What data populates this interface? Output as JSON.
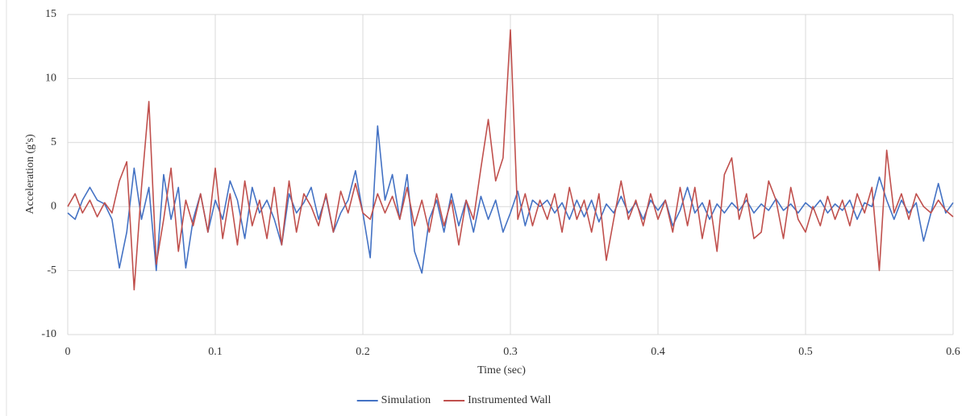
{
  "chart_data": {
    "type": "line",
    "x_label": "Time (sec)",
    "y_label": "Acceleration (g's)",
    "x": [
      0,
      0.005,
      0.01,
      0.015,
      0.02,
      0.025,
      0.03,
      0.035,
      0.04,
      0.045,
      0.05,
      0.055,
      0.06,
      0.065,
      0.07,
      0.075,
      0.08,
      0.085,
      0.09,
      0.095,
      0.1,
      0.105,
      0.11,
      0.115,
      0.12,
      0.125,
      0.13,
      0.135,
      0.14,
      0.145,
      0.15,
      0.155,
      0.16,
      0.165,
      0.17,
      0.175,
      0.18,
      0.185,
      0.19,
      0.195,
      0.2,
      0.205,
      0.21,
      0.215,
      0.22,
      0.225,
      0.23,
      0.235,
      0.24,
      0.245,
      0.25,
      0.255,
      0.26,
      0.265,
      0.27,
      0.275,
      0.28,
      0.285,
      0.29,
      0.295,
      0.3,
      0.305,
      0.31,
      0.315,
      0.32,
      0.325,
      0.33,
      0.335,
      0.34,
      0.345,
      0.35,
      0.355,
      0.36,
      0.365,
      0.37,
      0.375,
      0.38,
      0.385,
      0.39,
      0.395,
      0.4,
      0.405,
      0.41,
      0.415,
      0.42,
      0.425,
      0.43,
      0.435,
      0.44,
      0.445,
      0.45,
      0.455,
      0.46,
      0.465,
      0.47,
      0.475,
      0.48,
      0.485,
      0.49,
      0.495,
      0.5,
      0.505,
      0.51,
      0.515,
      0.52,
      0.525,
      0.53,
      0.535,
      0.54,
      0.545,
      0.55,
      0.555,
      0.56,
      0.565,
      0.57,
      0.575,
      0.58,
      0.585,
      0.59,
      0.595,
      0.6
    ],
    "series": [
      {
        "name": "Simulation",
        "color": "#4472c4",
        "values": [
          -0.5,
          -1,
          0.5,
          1.5,
          0.5,
          0.2,
          -1,
          -4.8,
          -2,
          3,
          -1,
          1.5,
          -5,
          2.5,
          -1,
          1.5,
          -4.8,
          -1,
          1,
          -2,
          0.5,
          -1,
          2,
          0.5,
          -2.5,
          1.5,
          -0.5,
          0.5,
          -1,
          -3,
          1,
          -0.5,
          0.3,
          1.5,
          -1,
          0.8,
          -2,
          -0.5,
          0.5,
          2.8,
          -0.5,
          -4,
          6.3,
          0.5,
          2.5,
          -1,
          2.5,
          -3.5,
          -5.2,
          -1,
          0.5,
          -2,
          1,
          -1.5,
          0.5,
          -2,
          0.8,
          -1,
          0.5,
          -2,
          -0.5,
          1.2,
          -1.5,
          0.5,
          0,
          0.5,
          -0.5,
          0.3,
          -1,
          0.5,
          -0.8,
          0.5,
          -1.2,
          0.2,
          -0.5,
          0.8,
          -0.5,
          0.3,
          -1,
          0.5,
          -0.3,
          0.5,
          -1.5,
          -0.3,
          1.5,
          -0.5,
          0.3,
          -1,
          0.2,
          -0.5,
          0.3,
          -0.3,
          0.5,
          -0.5,
          0.2,
          -0.3,
          0.6,
          -0.3,
          0.2,
          -0.5,
          0.3,
          -0.2,
          0.5,
          -0.5,
          0.2,
          -0.3,
          0.5,
          -1,
          0.3,
          0,
          2.3,
          0.5,
          -1,
          0.5,
          -0.5,
          0.3,
          -2.7,
          -0.5,
          1.8,
          -0.5,
          0.3
        ]
      },
      {
        "name": "Instrumented Wall",
        "color": "#c0504d",
        "values": [
          0,
          1,
          -0.5,
          0.5,
          -0.8,
          0.3,
          -0.5,
          2,
          3.5,
          -6.5,
          1.5,
          8.2,
          -4.5,
          -1,
          3,
          -3.5,
          0.5,
          -1.5,
          1,
          -2,
          3,
          -2.5,
          1,
          -3,
          2,
          -1.5,
          0.5,
          -2.5,
          1.5,
          -3,
          2,
          -2,
          1,
          0,
          -1.5,
          1,
          -2,
          1.2,
          -0.5,
          1.8,
          -0.5,
          -1,
          1,
          -0.5,
          0.8,
          -1,
          1.5,
          -1.5,
          0.5,
          -2,
          1,
          -1.5,
          0.5,
          -3,
          0.5,
          -1,
          3,
          6.8,
          2,
          3.8,
          13.8,
          -1,
          1,
          -1.5,
          0.5,
          -1,
          1,
          -2,
          1.5,
          -1,
          0.5,
          -2,
          1,
          -4.2,
          -1,
          2,
          -1,
          0.5,
          -1.5,
          1,
          -1,
          0.5,
          -2,
          1.5,
          -1.5,
          1.5,
          -2.5,
          0.5,
          -3.5,
          2.5,
          3.8,
          -1,
          1,
          -2.5,
          -2,
          2,
          0.5,
          -2.5,
          1.5,
          -1,
          -2,
          0,
          -1.5,
          0.8,
          -1,
          0.5,
          -1.5,
          1,
          -0.5,
          1.5,
          -5,
          4.4,
          -0.5,
          1,
          -1,
          1,
          0,
          -0.5,
          0.5,
          -0.3,
          -0.8
        ]
      }
    ],
    "xlim": [
      0,
      0.6
    ],
    "xticks": [
      0,
      0.1,
      0.2,
      0.3,
      0.4,
      0.5,
      0.6
    ],
    "ylim": [
      -10,
      15
    ],
    "yticks": [
      -10,
      -5,
      0,
      5,
      10,
      15
    ],
    "grid": true,
    "legend": "bottom"
  }
}
